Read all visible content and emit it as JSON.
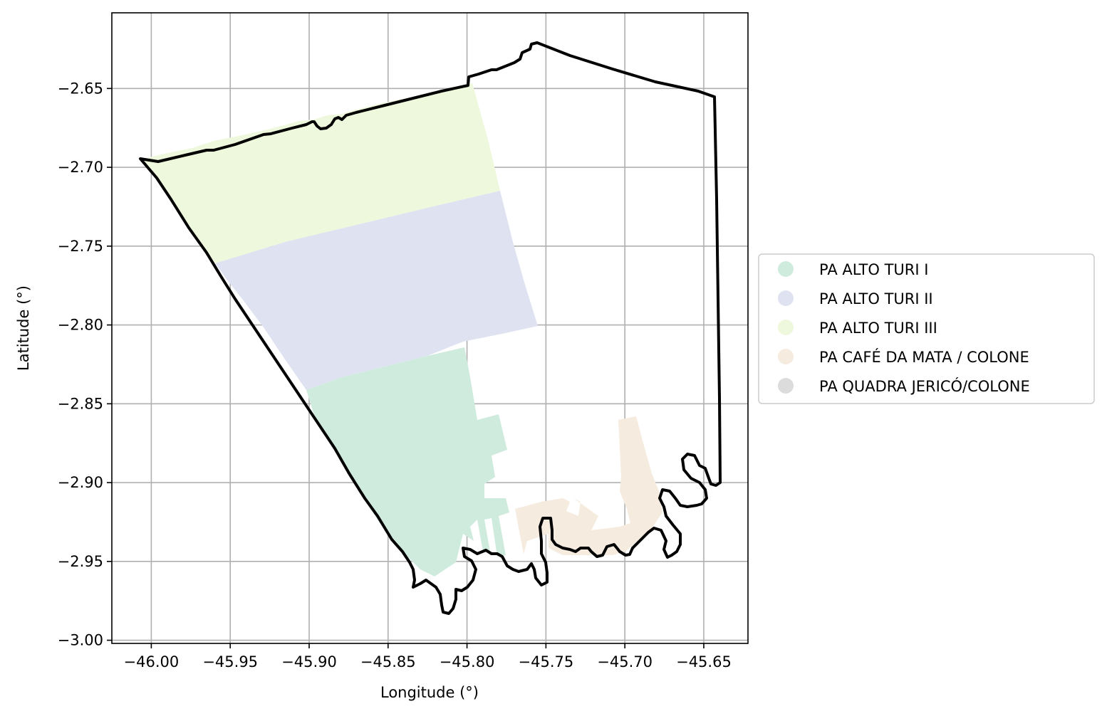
{
  "map": {
    "xlabel": "Longitude (°)",
    "ylabel": "Latitude (°)",
    "xlim": [
      -46.025,
      -45.622
    ],
    "ylim": [
      -3.002,
      -2.602
    ],
    "x_ticks": [
      -46.0,
      -45.95,
      -45.9,
      -45.85,
      -45.8,
      -45.75,
      -45.7,
      -45.65
    ],
    "x_tick_labels": [
      "−46.00",
      "−45.95",
      "−45.90",
      "−45.85",
      "−45.80",
      "−45.75",
      "−45.70",
      "−45.65"
    ],
    "y_ticks": [
      -2.65,
      -2.7,
      -2.75,
      -2.8,
      -2.85,
      -2.9,
      -2.95,
      -3.0
    ],
    "y_tick_labels": [
      "−2.65",
      "−2.70",
      "−2.75",
      "−2.80",
      "−2.85",
      "−2.90",
      "−2.95",
      "−3.00"
    ],
    "grid": true,
    "legend_position": "right",
    "legend": [
      {
        "label": "PA ALTO TURI I",
        "color": "#cfebdd"
      },
      {
        "label": "PA ALTO TURI II",
        "color": "#dfe3f1"
      },
      {
        "label": "PA ALTO TURI III",
        "color": "#eef8dc"
      },
      {
        "label": "PA CAFÉ DA MATA / COLONE",
        "color": "#f5ebde"
      },
      {
        "label": "PA QUADRA JERICÓ/COLONE",
        "color": "#dcdcdc"
      }
    ],
    "boundary_color": "#000000"
  }
}
